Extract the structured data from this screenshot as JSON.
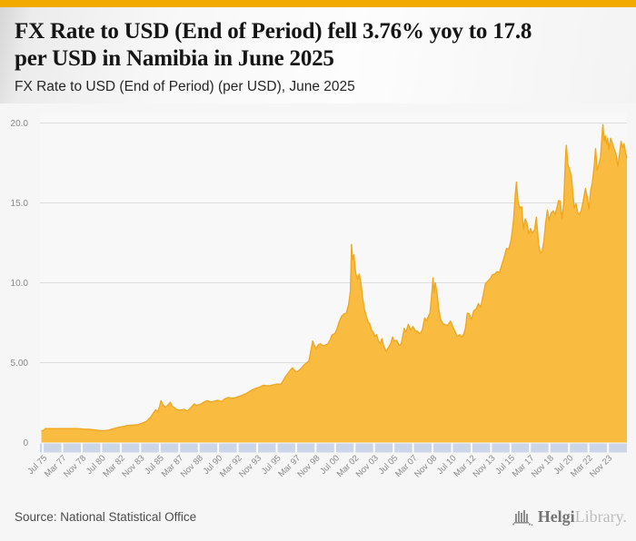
{
  "header": {
    "title": "FX Rate to USD (End of Period) fell 3.76% yoy to 17.8 per USD in Namibia in June 2025",
    "title_lines": [
      "FX Rate to USD (End of Period) fell 3.76% yoy to 17.8",
      "per USD in Namibia in June 2025"
    ],
    "subtitle": "FX Rate to USD (End of Period) (per USD), June 2025"
  },
  "footer": {
    "source": "Source: National Statistical Office",
    "logo_primary": "Helgi",
    "logo_secondary": "Library."
  },
  "colors": {
    "accent_bar": "#F2A900",
    "area_fill": "#F9BC41",
    "area_line": "#F1A821",
    "axis_band": "#CDD6E8",
    "gridline": "#dedede",
    "tick_text": "#8a8a8a",
    "plot_bg": "#f8f8f8"
  },
  "chart_data": {
    "type": "area",
    "title": "FX Rate to USD (End of Period) (per USD), June 2025",
    "series_name": "FX Rate to USD (End of Period), Namibia (per USD)",
    "latest_value": 17.8,
    "latest_period": "June 2025",
    "yoy_change_pct": -3.76,
    "ylim": [
      0,
      20
    ],
    "grid_values": [
      5,
      10,
      15,
      20
    ],
    "y_ticks": [
      {
        "label": "20.0",
        "v": 20
      },
      {
        "label": "15.0",
        "v": 15
      },
      {
        "label": "10.0",
        "v": 10
      },
      {
        "label": "5.00",
        "v": 5
      },
      {
        "label": "0",
        "v": 0
      }
    ],
    "x_range_years": [
      1975.3,
      2025.5
    ],
    "x_tick_start_year": 1975.542,
    "x_tick_step_years": 1.6667,
    "x_tick_labels": [
      "Jul 75",
      "Mar 77",
      "Nov 78",
      "Jul 80",
      "Mar 82",
      "Nov 83",
      "Jul 85",
      "Mar 87",
      "Nov 88",
      "Jul 90",
      "Mar 92",
      "Nov 93",
      "Jul 95",
      "Mar 97",
      "Nov 98",
      "Jul 00",
      "Mar 02",
      "Nov 03",
      "Jul 05",
      "Mar 07",
      "Nov 08",
      "Jul 10",
      "Mar 12",
      "Nov 13",
      "Jul 15",
      "Mar 17",
      "Nov 18",
      "Jul 20",
      "Mar 22",
      "Nov 23"
    ],
    "points": [
      [
        1975.42,
        0.75
      ],
      [
        1975.58,
        0.74
      ],
      [
        1975.75,
        0.87
      ],
      [
        1976.0,
        0.87
      ],
      [
        1976.5,
        0.87
      ],
      [
        1977.0,
        0.87
      ],
      [
        1977.5,
        0.87
      ],
      [
        1978.0,
        0.87
      ],
      [
        1978.5,
        0.87
      ],
      [
        1979.0,
        0.84
      ],
      [
        1979.5,
        0.83
      ],
      [
        1980.0,
        0.79
      ],
      [
        1980.4,
        0.75
      ],
      [
        1980.8,
        0.74
      ],
      [
        1981.2,
        0.78
      ],
      [
        1981.6,
        0.87
      ],
      [
        1982.0,
        0.95
      ],
      [
        1982.4,
        1.0
      ],
      [
        1982.8,
        1.07
      ],
      [
        1983.2,
        1.09
      ],
      [
        1983.6,
        1.11
      ],
      [
        1984.0,
        1.2
      ],
      [
        1984.4,
        1.32
      ],
      [
        1984.8,
        1.62
      ],
      [
        1985.0,
        1.85
      ],
      [
        1985.2,
        2.05
      ],
      [
        1985.35,
        1.92
      ],
      [
        1985.5,
        2.18
      ],
      [
        1985.65,
        2.62
      ],
      [
        1985.8,
        2.38
      ],
      [
        1986.0,
        2.2
      ],
      [
        1986.2,
        2.32
      ],
      [
        1986.45,
        2.52
      ],
      [
        1986.6,
        2.28
      ],
      [
        1986.8,
        2.18
      ],
      [
        1987.0,
        2.06
      ],
      [
        1987.3,
        2.02
      ],
      [
        1987.6,
        2.08
      ],
      [
        1987.9,
        1.97
      ],
      [
        1988.2,
        2.18
      ],
      [
        1988.5,
        2.42
      ],
      [
        1988.7,
        2.32
      ],
      [
        1989.0,
        2.38
      ],
      [
        1989.3,
        2.52
      ],
      [
        1989.6,
        2.62
      ],
      [
        1989.9,
        2.54
      ],
      [
        1990.2,
        2.58
      ],
      [
        1990.5,
        2.65
      ],
      [
        1990.8,
        2.56
      ],
      [
        1991.1,
        2.72
      ],
      [
        1991.4,
        2.82
      ],
      [
        1991.7,
        2.78
      ],
      [
        1992.0,
        2.8
      ],
      [
        1992.3,
        2.88
      ],
      [
        1992.6,
        2.96
      ],
      [
        1992.9,
        3.05
      ],
      [
        1993.2,
        3.18
      ],
      [
        1993.5,
        3.32
      ],
      [
        1993.8,
        3.4
      ],
      [
        1994.1,
        3.48
      ],
      [
        1994.4,
        3.58
      ],
      [
        1994.7,
        3.55
      ],
      [
        1995.0,
        3.56
      ],
      [
        1995.3,
        3.62
      ],
      [
        1995.6,
        3.66
      ],
      [
        1995.9,
        3.65
      ],
      [
        1996.1,
        3.88
      ],
      [
        1996.3,
        4.12
      ],
      [
        1996.5,
        4.32
      ],
      [
        1996.7,
        4.52
      ],
      [
        1996.9,
        4.68
      ],
      [
        1997.1,
        4.48
      ],
      [
        1997.3,
        4.43
      ],
      [
        1997.5,
        4.55
      ],
      [
        1997.7,
        4.68
      ],
      [
        1997.9,
        4.87
      ],
      [
        1998.1,
        4.98
      ],
      [
        1998.3,
        5.1
      ],
      [
        1998.5,
        5.85
      ],
      [
        1998.62,
        6.35
      ],
      [
        1998.75,
        6.1
      ],
      [
        1998.9,
        5.86
      ],
      [
        1999.1,
        6.12
      ],
      [
        1999.3,
        6.18
      ],
      [
        1999.5,
        6.05
      ],
      [
        1999.7,
        6.1
      ],
      [
        1999.9,
        6.15
      ],
      [
        2000.1,
        6.4
      ],
      [
        2000.3,
        6.75
      ],
      [
        2000.5,
        6.8
      ],
      [
        2000.7,
        7.1
      ],
      [
        2000.9,
        7.57
      ],
      [
        2001.1,
        7.9
      ],
      [
        2001.3,
        8.05
      ],
      [
        2001.5,
        8.1
      ],
      [
        2001.7,
        8.65
      ],
      [
        2001.85,
        9.5
      ],
      [
        2001.95,
        12.4
      ],
      [
        2002.05,
        11.45
      ],
      [
        2002.15,
        11.75
      ],
      [
        2002.3,
        10.6
      ],
      [
        2002.45,
        10.25
      ],
      [
        2002.6,
        10.55
      ],
      [
        2002.75,
        10.0
      ],
      [
        2002.9,
        9.0
      ],
      [
        2003.05,
        8.35
      ],
      [
        2003.2,
        7.95
      ],
      [
        2003.35,
        7.55
      ],
      [
        2003.5,
        7.45
      ],
      [
        2003.65,
        7.05
      ],
      [
        2003.8,
        6.9
      ],
      [
        2003.95,
        6.65
      ],
      [
        2004.1,
        6.75
      ],
      [
        2004.25,
        6.35
      ],
      [
        2004.4,
        6.2
      ],
      [
        2004.55,
        6.5
      ],
      [
        2004.7,
        6.05
      ],
      [
        2004.9,
        5.7
      ],
      [
        2005.1,
        5.95
      ],
      [
        2005.3,
        6.2
      ],
      [
        2005.45,
        6.6
      ],
      [
        2005.6,
        6.35
      ],
      [
        2005.8,
        6.4
      ],
      [
        2006.0,
        6.1
      ],
      [
        2006.2,
        6.15
      ],
      [
        2006.45,
        7.15
      ],
      [
        2006.6,
        6.9
      ],
      [
        2006.8,
        7.4
      ],
      [
        2007.0,
        7.05
      ],
      [
        2007.2,
        7.25
      ],
      [
        2007.4,
        7.0
      ],
      [
        2007.6,
        6.95
      ],
      [
        2007.8,
        6.8
      ],
      [
        2008.0,
        7.05
      ],
      [
        2008.2,
        7.8
      ],
      [
        2008.35,
        7.6
      ],
      [
        2008.5,
        7.85
      ],
      [
        2008.65,
        8.1
      ],
      [
        2008.8,
        9.2
      ],
      [
        2008.92,
        10.3
      ],
      [
        2009.0,
        9.35
      ],
      [
        2009.1,
        10.0
      ],
      [
        2009.25,
        9.4
      ],
      [
        2009.4,
        8.4
      ],
      [
        2009.55,
        7.75
      ],
      [
        2009.75,
        7.45
      ],
      [
        2010.0,
        7.36
      ],
      [
        2010.2,
        7.35
      ],
      [
        2010.4,
        7.6
      ],
      [
        2010.6,
        7.25
      ],
      [
        2010.8,
        6.95
      ],
      [
        2011.0,
        6.63
      ],
      [
        2011.2,
        6.75
      ],
      [
        2011.35,
        6.58
      ],
      [
        2011.55,
        6.8
      ],
      [
        2011.7,
        7.2
      ],
      [
        2011.85,
        8.1
      ],
      [
        2012.0,
        8.05
      ],
      [
        2012.2,
        7.7
      ],
      [
        2012.4,
        8.25
      ],
      [
        2012.6,
        8.35
      ],
      [
        2012.8,
        8.7
      ],
      [
        2013.0,
        8.48
      ],
      [
        2013.2,
        9.2
      ],
      [
        2013.4,
        9.95
      ],
      [
        2013.6,
        10.1
      ],
      [
        2013.8,
        10.25
      ],
      [
        2014.0,
        10.5
      ],
      [
        2014.2,
        10.55
      ],
      [
        2014.4,
        10.7
      ],
      [
        2014.6,
        10.65
      ],
      [
        2014.8,
        11.1
      ],
      [
        2015.0,
        11.6
      ],
      [
        2015.2,
        12.15
      ],
      [
        2015.4,
        12.1
      ],
      [
        2015.6,
        12.7
      ],
      [
        2015.8,
        13.9
      ],
      [
        2015.95,
        15.5
      ],
      [
        2016.05,
        16.3
      ],
      [
        2016.2,
        15.0
      ],
      [
        2016.35,
        14.7
      ],
      [
        2016.5,
        14.75
      ],
      [
        2016.65,
        13.35
      ],
      [
        2016.8,
        14.0
      ],
      [
        2016.95,
        13.74
      ],
      [
        2017.1,
        13.05
      ],
      [
        2017.25,
        13.4
      ],
      [
        2017.4,
        13.1
      ],
      [
        2017.6,
        13.3
      ],
      [
        2017.75,
        14.1
      ],
      [
        2017.95,
        12.4
      ],
      [
        2018.1,
        11.85
      ],
      [
        2018.25,
        11.95
      ],
      [
        2018.4,
        12.6
      ],
      [
        2018.55,
        13.75
      ],
      [
        2018.7,
        14.55
      ],
      [
        2018.85,
        13.9
      ],
      [
        2019.0,
        14.35
      ],
      [
        2019.2,
        14.5
      ],
      [
        2019.35,
        14.25
      ],
      [
        2019.5,
        14.65
      ],
      [
        2019.65,
        15.15
      ],
      [
        2019.8,
        15.1
      ],
      [
        2019.95,
        14.0
      ],
      [
        2020.1,
        15.0
      ],
      [
        2020.25,
        17.85
      ],
      [
        2020.32,
        18.6
      ],
      [
        2020.45,
        17.4
      ],
      [
        2020.6,
        17.1
      ],
      [
        2020.75,
        16.65
      ],
      [
        2020.9,
        15.4
      ],
      [
        2021.0,
        14.69
      ],
      [
        2021.15,
        14.95
      ],
      [
        2021.3,
        14.35
      ],
      [
        2021.45,
        14.27
      ],
      [
        2021.6,
        14.55
      ],
      [
        2021.75,
        15.05
      ],
      [
        2021.95,
        15.9
      ],
      [
        2022.1,
        15.4
      ],
      [
        2022.25,
        14.6
      ],
      [
        2022.4,
        15.75
      ],
      [
        2022.55,
        16.3
      ],
      [
        2022.7,
        17.3
      ],
      [
        2022.82,
        18.4
      ],
      [
        2022.95,
        17.05
      ],
      [
        2023.1,
        17.4
      ],
      [
        2023.25,
        17.85
      ],
      [
        2023.38,
        19.3
      ],
      [
        2023.45,
        19.9
      ],
      [
        2023.55,
        18.85
      ],
      [
        2023.65,
        19.2
      ],
      [
        2023.75,
        18.75
      ],
      [
        2023.85,
        19.05
      ],
      [
        2023.95,
        18.35
      ],
      [
        2024.1,
        19.05
      ],
      [
        2024.25,
        18.75
      ],
      [
        2024.4,
        18.4
      ],
      [
        2024.55,
        18.1
      ],
      [
        2024.72,
        17.3
      ],
      [
        2024.85,
        17.95
      ],
      [
        2025.0,
        18.85
      ],
      [
        2025.12,
        18.45
      ],
      [
        2025.25,
        18.7
      ],
      [
        2025.38,
        18.15
      ],
      [
        2025.5,
        17.8
      ]
    ]
  }
}
